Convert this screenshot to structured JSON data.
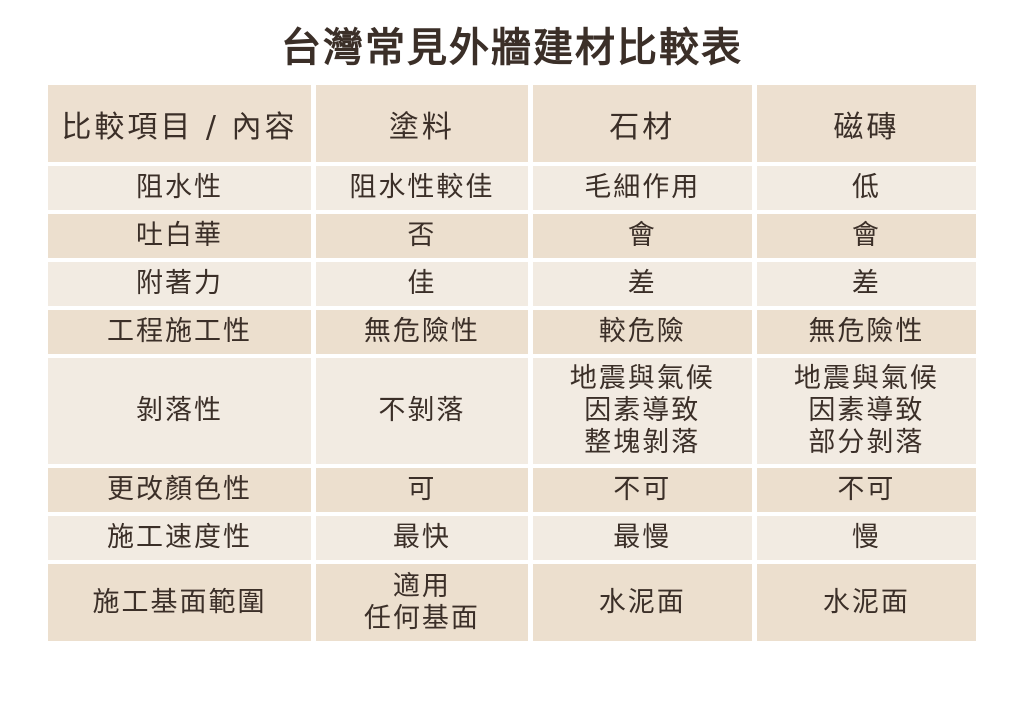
{
  "chart_data": {
    "type": "table",
    "title": "台灣常見外牆建材比較表",
    "columns": [
      "比較項目 / 內容",
      "塗料",
      "石材",
      "磁磚"
    ],
    "rows": [
      {
        "label": "阻水性",
        "values": [
          "阻水性較佳",
          "毛細作用",
          "低"
        ]
      },
      {
        "label": "吐白華",
        "values": [
          "否",
          "會",
          "會"
        ]
      },
      {
        "label": "附著力",
        "values": [
          "佳",
          "差",
          "差"
        ]
      },
      {
        "label": "工程施工性",
        "values": [
          "無危險性",
          "較危險",
          "無危險性"
        ]
      },
      {
        "label": "剝落性",
        "values": [
          "不剝落",
          "地震與氣候\n因素導致\n整塊剝落",
          "地震與氣候\n因素導致\n部分剝落"
        ]
      },
      {
        "label": "更改顏色性",
        "values": [
          "可",
          "不可",
          "不可"
        ]
      },
      {
        "label": "施工速度性",
        "values": [
          "最快",
          "最慢",
          "慢"
        ]
      },
      {
        "label": "施工基面範圍",
        "values": [
          "適用\n任何基面",
          "水泥面",
          "水泥面"
        ]
      }
    ],
    "layout_hints": {
      "header_background": "#ede0d0",
      "row_light_background": "#f2ebe2",
      "row_dark_background": "#ecdfce",
      "text_color": "#3b2f28",
      "page_background": "#ffffff",
      "grid": "white gutters between cells"
    }
  }
}
